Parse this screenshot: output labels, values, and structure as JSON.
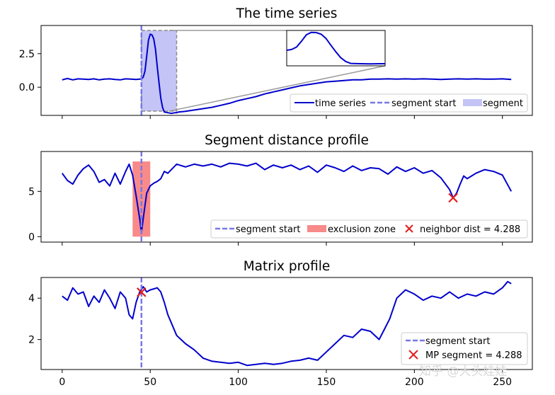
{
  "chart_data": [
    {
      "type": "line",
      "title": "The time series",
      "xlim": [
        -12,
        267
      ],
      "ylim": [
        -2.1,
        4.6
      ],
      "yticks": [
        0.0,
        2.5
      ],
      "ytick_labels": [
        "0.0",
        "2.5"
      ],
      "legend": {
        "position": "lower-right",
        "entries": [
          "time series",
          "segment start",
          "segment"
        ]
      },
      "series": [
        {
          "name": "time series",
          "color": "#0000cc",
          "x": [
            0,
            3,
            6,
            9,
            12,
            15,
            18,
            21,
            24,
            27,
            30,
            33,
            36,
            39,
            42,
            44,
            45,
            46,
            47,
            48,
            49,
            50,
            51,
            52,
            53,
            54,
            55,
            56,
            57,
            58,
            60,
            62,
            64,
            65,
            66,
            70,
            75,
            80,
            85,
            90,
            95,
            100,
            105,
            110,
            115,
            120,
            125,
            130,
            135,
            140,
            145,
            150,
            155,
            160,
            165,
            170,
            175,
            180,
            185,
            190,
            195,
            200,
            205,
            210,
            215,
            220,
            225,
            230,
            235,
            240,
            245,
            250,
            255
          ],
          "y": [
            0.55,
            0.65,
            0.55,
            0.62,
            0.6,
            0.58,
            0.62,
            0.55,
            0.6,
            0.62,
            0.58,
            0.55,
            0.62,
            0.6,
            0.58,
            0.6,
            0.6,
            0.75,
            1.2,
            2.3,
            3.5,
            3.95,
            3.9,
            3.6,
            2.8,
            1.5,
            0.3,
            -0.8,
            -1.5,
            -1.85,
            -1.9,
            -1.95,
            -1.9,
            -1.9,
            -1.85,
            -1.8,
            -1.7,
            -1.6,
            -1.5,
            -1.35,
            -1.2,
            -1.0,
            -0.85,
            -0.7,
            -0.5,
            -0.35,
            -0.2,
            -0.05,
            0.1,
            0.2,
            0.3,
            0.4,
            0.45,
            0.5,
            0.55,
            0.55,
            0.6,
            0.6,
            0.62,
            0.6,
            0.62,
            0.6,
            0.62,
            0.6,
            0.58,
            0.6,
            0.62,
            0.6,
            0.62,
            0.6,
            0.6,
            0.62,
            0.58
          ]
        }
      ],
      "segment_start": 45,
      "segment_range": [
        45,
        65
      ],
      "inset": {
        "xlim": [
          45,
          65
        ],
        "color": "#0000cc"
      }
    },
    {
      "type": "line",
      "title": "Segment distance profile",
      "xlim": [
        -12,
        267
      ],
      "ylim": [
        -0.6,
        9.4
      ],
      "yticks": [
        0,
        5
      ],
      "ytick_labels": [
        "0",
        "5"
      ],
      "legend": {
        "position": "lower-right",
        "entries": [
          "segment start",
          "exclusion zone",
          "neighbor dist = 4.288"
        ]
      },
      "series": [
        {
          "name": "distance profile",
          "color": "#0000cc",
          "x": [
            0,
            3,
            6,
            9,
            12,
            15,
            18,
            21,
            24,
            27,
            30,
            33,
            36,
            38,
            40,
            42,
            44,
            45,
            46,
            48,
            50,
            52,
            54,
            56,
            58,
            60,
            65,
            70,
            75,
            80,
            85,
            90,
            95,
            100,
            105,
            110,
            115,
            120,
            125,
            130,
            135,
            140,
            145,
            150,
            155,
            160,
            165,
            170,
            175,
            180,
            185,
            190,
            195,
            200,
            205,
            210,
            215,
            220,
            222,
            224,
            226,
            228,
            230,
            235,
            240,
            245,
            250,
            255
          ],
          "y": [
            7.0,
            6.2,
            5.8,
            6.8,
            7.5,
            7.9,
            7.2,
            6.0,
            6.3,
            5.6,
            7.0,
            5.8,
            7.2,
            8.0,
            6.8,
            4.5,
            2.0,
            0.4,
            2.0,
            4.8,
            5.6,
            5.9,
            6.1,
            6.4,
            7.2,
            7.0,
            8.0,
            7.7,
            8.0,
            7.8,
            8.0,
            7.7,
            8.1,
            8.0,
            7.8,
            8.1,
            7.4,
            7.9,
            7.6,
            7.9,
            7.4,
            7.8,
            7.1,
            7.9,
            7.6,
            7.2,
            7.8,
            7.3,
            7.6,
            7.5,
            6.9,
            7.7,
            7.2,
            7.6,
            7.0,
            7.3,
            6.5,
            5.2,
            4.288,
            4.8,
            5.8,
            6.7,
            6.4,
            7.0,
            7.4,
            7.2,
            6.8,
            5.0
          ]
        }
      ],
      "segment_start": 45,
      "exclusion_zone": [
        40,
        50
      ],
      "neighbor": {
        "x": 222,
        "y": 4.288
      }
    },
    {
      "type": "line",
      "title": "Matrix profile",
      "xlim": [
        -12,
        267
      ],
      "ylim": [
        0.55,
        5.0
      ],
      "yticks": [
        2,
        4
      ],
      "ytick_labels": [
        "2",
        "4"
      ],
      "xticks": [
        0,
        50,
        100,
        150,
        200,
        250
      ],
      "xtick_labels": [
        "0",
        "50",
        "100",
        "150",
        "200",
        "250"
      ],
      "legend": {
        "position": "lower-right",
        "entries": [
          "segment start",
          "MP segment = 4.288"
        ]
      },
      "series": [
        {
          "name": "matrix profile",
          "color": "#0000cc",
          "x": [
            0,
            3,
            6,
            9,
            12,
            15,
            18,
            21,
            24,
            27,
            30,
            33,
            36,
            38,
            40,
            42,
            44,
            46,
            48,
            50,
            52,
            54,
            56,
            58,
            60,
            62,
            65,
            70,
            75,
            80,
            85,
            90,
            95,
            100,
            105,
            110,
            115,
            120,
            125,
            130,
            135,
            140,
            145,
            150,
            155,
            160,
            165,
            170,
            175,
            180,
            183,
            186,
            190,
            195,
            200,
            205,
            210,
            215,
            220,
            225,
            230,
            235,
            240,
            245,
            250,
            253,
            255
          ],
          "y": [
            4.1,
            3.9,
            4.5,
            4.2,
            4.3,
            3.6,
            4.1,
            3.8,
            4.4,
            4.0,
            3.5,
            4.3,
            4.0,
            3.2,
            3.0,
            3.8,
            4.3,
            4.55,
            4.3,
            4.4,
            4.45,
            4.5,
            4.3,
            3.8,
            3.2,
            2.8,
            2.2,
            1.8,
            1.5,
            1.1,
            0.95,
            0.9,
            0.85,
            0.9,
            0.75,
            0.8,
            0.85,
            0.8,
            0.85,
            0.95,
            1.0,
            1.1,
            1.0,
            1.4,
            1.8,
            2.2,
            2.1,
            2.5,
            2.4,
            2.0,
            2.5,
            3.0,
            4.0,
            4.4,
            4.2,
            3.9,
            4.1,
            4.0,
            4.3,
            4.0,
            4.2,
            4.1,
            4.3,
            4.2,
            4.5,
            4.8,
            4.7
          ]
        }
      ],
      "segment_start": 45,
      "mp_segment": {
        "x": 45,
        "y": 4.288
      }
    }
  ],
  "watermark": "知乎 @大头娃娃"
}
